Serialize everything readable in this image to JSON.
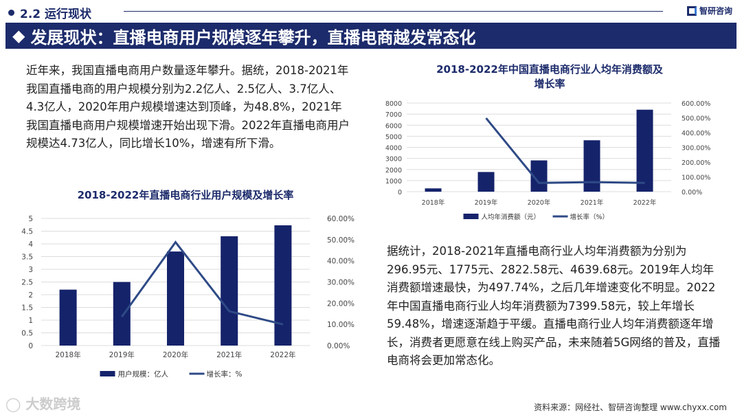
{
  "header": {
    "section": "2.2 运行现状",
    "brand": "智研咨询"
  },
  "title": "发展现状：直播电商用户规模逐年攀升，直播电商越发常态化",
  "paragraph1": "近年来，我国直播电商用户数量逐年攀升。据统，2018-2021年我国直播电商的用户规模分别为2.2亿人、2.5亿人、3.7亿人、4.3亿人，2020年用户规模增速达到顶峰，为48.8%，2021年我国直播电商用户规模增速开始出现下滑。2022年直播电商用户规模达4.73亿人，同比增长10%，增速有所下滑。",
  "paragraph2": "据统计，2018-2021年直播电商行业人均年消费额为分别为296.95元、1775元、2822.58元、4639.68元。2019年人均年消费额增速最快，为497.74%，之后几年增速变化不明显。2022年中国直播电商行业人均年消费额为7399.58元，较上年增长59.48%，增速逐渐趋于平缓。直播电商行业人均年消费额逐年增长，消费者更愿意在线上购买产品，未来随着5G网络的普及，直播电商将会更加常态化。",
  "footer": {
    "source": "资料来源：网经社、智研咨询整理 www.chyxx.com",
    "watermark": "大数跨境"
  },
  "colors": {
    "navy": "#1c2b6b",
    "bar": "#15236b",
    "line": "#2e4a86"
  },
  "chart_data": [
    {
      "type": "bar+line",
      "title": "2018-2022年直播电商行业用户规模及增长率",
      "categories": [
        "2018年",
        "2019年",
        "2020年",
        "2021年",
        "2022年"
      ],
      "series": [
        {
          "name": "用户规模：亿人",
          "type": "bar",
          "axis": "left",
          "values": [
            2.2,
            2.5,
            3.7,
            4.3,
            4.73
          ]
        },
        {
          "name": "增长率：%",
          "type": "line",
          "axis": "right",
          "values": [
            null,
            13.6,
            48.8,
            16.2,
            10
          ]
        }
      ],
      "ylim": [
        0,
        5
      ],
      "yticks": [
        "0",
        "0.5",
        "1",
        "1.5",
        "2",
        "2.5",
        "3",
        "3.5",
        "4",
        "4.5",
        "5"
      ],
      "y2lim": [
        0,
        60
      ],
      "y2ticks": [
        "0.00%",
        "10.00%",
        "20.00%",
        "30.00%",
        "40.00%",
        "50.00%",
        "60.00%"
      ],
      "grid": true,
      "legend": "bottom"
    },
    {
      "type": "bar+line",
      "title": "2018-2022年中国直播电商行业人均年消费额及增长率",
      "categories": [
        "2018年",
        "2019年",
        "2020年",
        "2021年",
        "2022年"
      ],
      "series": [
        {
          "name": "人均年消费额（元）",
          "type": "bar",
          "axis": "left",
          "values": [
            296.95,
            1775,
            2822.58,
            4639.68,
            7399.58
          ]
        },
        {
          "name": "增长率（%）",
          "type": "line",
          "axis": "right",
          "values": [
            null,
            497.74,
            59.02,
            64.38,
            59.48
          ]
        }
      ],
      "ylim": [
        0,
        8000
      ],
      "yticks": [
        "0",
        "1000",
        "2000",
        "3000",
        "4000",
        "5000",
        "6000",
        "7000",
        "8000"
      ],
      "y2lim": [
        0,
        600
      ],
      "y2ticks": [
        "0.00%",
        "100.00%",
        "200.00%",
        "300.00%",
        "400.00%",
        "500.00%",
        "600.00%"
      ],
      "grid": true,
      "legend": "bottom"
    }
  ]
}
